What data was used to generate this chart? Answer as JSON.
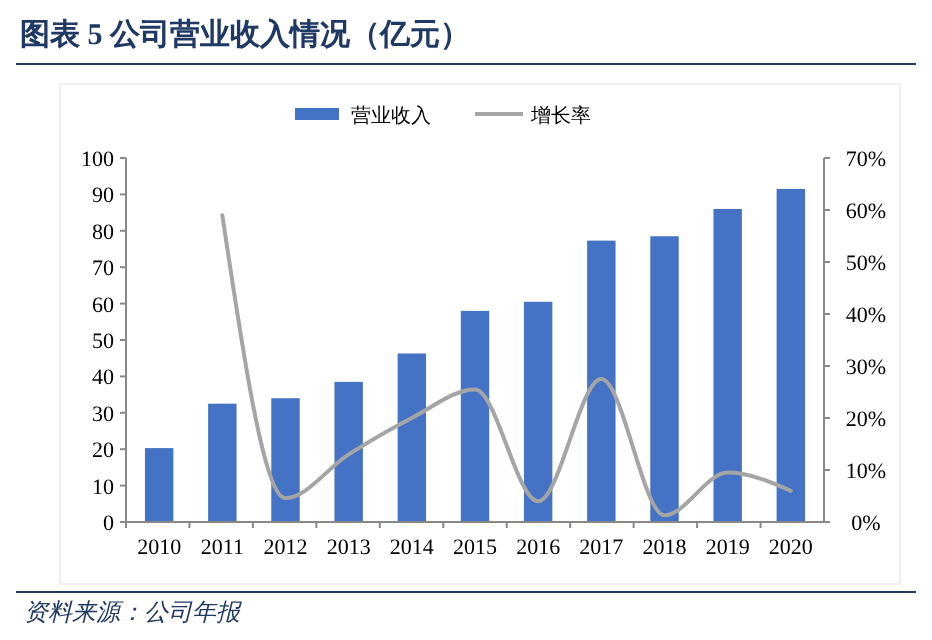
{
  "chart_data": {
    "type": "bar",
    "title": "图表 5   公司营业收入情况（亿元）",
    "annotations": [
      "资料来源：公司年报"
    ],
    "categories": [
      "2010",
      "2011",
      "2012",
      "2013",
      "2014",
      "2015",
      "2016",
      "2017",
      "2018",
      "2019",
      "2020"
    ],
    "series": [
      {
        "name": "营业收入",
        "color": "#4472c4",
        "values": [
          20.3,
          32.5,
          34,
          38.5,
          46.3,
          58,
          60.5,
          77.3,
          78.5,
          86,
          91.5
        ]
      },
      {
        "name": "增长率",
        "type": "line",
        "axis": "y2",
        "color": "#a5a5a5",
        "values": [
          null,
          59,
          4.6,
          13,
          20,
          25.5,
          4,
          27.5,
          1.3,
          9.5,
          6
        ]
      }
    ],
    "ylim": [
      0,
      100
    ],
    "yticks": [
      0,
      10,
      20,
      30,
      40,
      50,
      60,
      70,
      80,
      90,
      100
    ],
    "y2lim": [
      0,
      70
    ],
    "y2ticks": [
      {
        "value": 0,
        "label": "0%"
      },
      {
        "value": 10,
        "label": "10%"
      },
      {
        "value": 20,
        "label": "20%"
      },
      {
        "value": 30,
        "label": "30%"
      },
      {
        "value": 40,
        "label": "40%"
      },
      {
        "value": 50,
        "label": "50%"
      },
      {
        "value": 60,
        "label": "60%"
      },
      {
        "value": 70,
        "label": "70%"
      }
    ],
    "legend": "top",
    "marker": "none",
    "grid": false
  }
}
